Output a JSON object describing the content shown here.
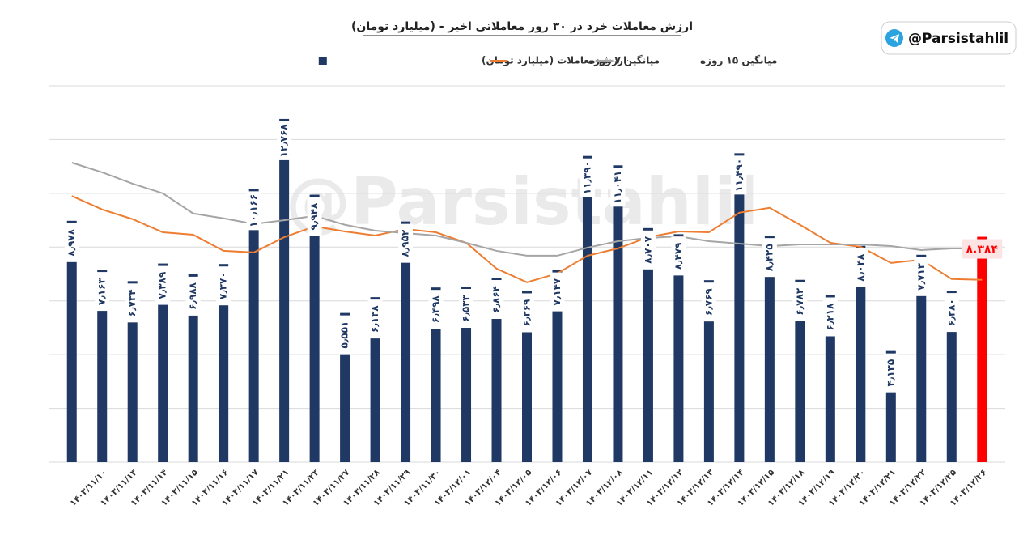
{
  "chart_data": {
    "type": "bar",
    "title": "ارزش معاملات خرد در ۳۰ روز معاملاتی اخیر - (میلیارد تومان)",
    "watermark": "@Parsistahlil",
    "badge": "@Parsistahlil",
    "categories": [
      null,
      "۱۴۰۳/۱۱/۱۰",
      "۱۴۰۳/۱۱/۱۳",
      "۱۴۰۳/۱۱/۱۴",
      "۱۴۰۳/۱۱/۱۵",
      "۱۴۰۳/۱۱/۱۶",
      "۱۴۰۳/۱۱/۱۷",
      "۱۴۰۳/۱۱/۲۱",
      "۱۴۰۳/۱۱/۲۳",
      "۱۴۰۳/۱۱/۲۷",
      "۱۴۰۳/۱۱/۲۸",
      "۱۴۰۳/۱۱/۲۹",
      "۱۴۰۳/۱۱/۳۰",
      "۱۴۰۳/۱۲/۰۱",
      "۱۴۰۳/۱۲/۰۴",
      "۱۴۰۳/۱۲/۰۵",
      "۱۴۰۳/۱۲/۰۶",
      "۱۴۰۳/۱۲/۰۷",
      "۱۴۰۳/۱۲/۰۸",
      "۱۴۰۳/۱۲/۱۱",
      "۱۴۰۳/۱۲/۱۲",
      "۱۴۰۳/۱۲/۱۳",
      "۱۴۰۳/۱۲/۱۴",
      "۱۴۰۳/۱۲/۱۵",
      "۱۴۰۳/۱۲/۱۸",
      "۱۴۰۳/۱۲/۱۹",
      "۱۴۰۳/۱۲/۲۰",
      "۱۴۰۳/۱۲/۲۱",
      "۱۴۰۳/۱۲/۲۲",
      "۱۴۰۳/۱۲/۲۵",
      "۱۴۰۳/۱۲/۲۶"
    ],
    "series": [
      {
        "name": "ارزش معاملات (میلیارد تومان)",
        "type": "bar",
        "color": "#1f3864",
        "colors": [
          "#1f3864",
          "#1f3864",
          "#1f3864",
          "#1f3864",
          "#1f3864",
          "#1f3864",
          "#1f3864",
          "#1f3864",
          "#1f3864",
          "#1f3864",
          "#1f3864",
          "#1f3864",
          "#1f3864",
          "#1f3864",
          "#1f3864",
          "#1f3864",
          "#1f3864",
          "#1f3864",
          "#1f3864",
          "#1f3864",
          "#1f3864",
          "#1f3864",
          "#1f3864",
          "#1f3864",
          "#1f3864",
          "#1f3864",
          "#1f3864",
          "#1f3864",
          "#1f3864",
          "#1f3864",
          "#ff0000"
        ],
        "values": [
          8.978,
          7.163,
          6.734,
          7.389,
          6.988,
          7.37,
          10.166,
          12.768,
          9.948,
          5.551,
          6.138,
          8.952,
          6.498,
          6.533,
          6.864,
          6.369,
          7.147,
          11.39,
          11.041,
          8.707,
          8.479,
          6.769,
          11.49,
          8.425,
          6.782,
          6.218,
          8.048,
          4.135,
          7.713,
          6.38,
          8.384
        ],
        "value_labels": [
          "۸٫۹۷۸",
          "۷٫۱۶۳",
          "۶٫۷۳۴",
          "۷٫۳۸۹",
          "۶٫۹۸۸",
          "۷٫۳۷۰",
          "۱۰٫۱۶۶",
          "۱۲٫۷۶۸",
          "۹٫۹۴۸",
          "۵٫۵۵۱",
          "۶٫۱۳۸",
          "۸٫۹۵۲",
          "۶٫۴۹۸",
          "۶٫۵۳۳",
          "۶٫۸۶۴",
          "۶٫۳۶۹",
          "۷٫۱۴۷",
          "۱۱٫۳۹۰",
          "۱۱٫۰۴۱",
          "۸٫۷۰۷",
          "۸٫۴۷۹",
          "۶٫۷۶۹",
          "۱۱٫۴۹۰",
          "۸٫۴۲۵",
          "۶٫۷۸۲",
          "۶٫۲۱۸",
          "۸٫۰۴۸",
          "۴٫۱۳۵",
          "۷٫۷۱۳",
          "۶٫۳۸۰",
          "۸.۳۸۴"
        ]
      },
      {
        "name": "میانگین ۷ روزه",
        "type": "line",
        "color": "#ed7d31",
        "values": [
          9.9,
          9.4,
          9.04,
          8.55,
          8.46,
          7.86,
          7.8,
          8.37,
          8.77,
          8.58,
          8.43,
          8.67,
          8.55,
          8.16,
          7.2,
          6.69,
          7.02,
          7.68,
          7.95,
          8.37,
          8.58,
          8.55,
          9.28,
          9.46,
          8.83,
          8.16,
          8.01,
          7.41,
          7.53,
          6.81,
          6.78
        ]
      },
      {
        "name": "میانگین ۱۵ روزه",
        "type": "line",
        "color": "#a5a5a5",
        "values": [
          11.14,
          10.78,
          10.36,
          10.0,
          9.25,
          9.07,
          8.86,
          9.0,
          9.16,
          8.83,
          8.61,
          8.52,
          8.43,
          8.16,
          7.86,
          7.68,
          7.68,
          7.98,
          8.22,
          8.34,
          8.4,
          8.22,
          8.13,
          8.04,
          8.1,
          8.1,
          8.1,
          8.04,
          7.89,
          7.95,
          7.95
        ]
      }
    ],
    "ylim": [
      0,
      14
    ],
    "yticks": [
      0,
      2,
      4,
      6,
      8,
      10,
      12,
      14
    ],
    "grid": true
  }
}
